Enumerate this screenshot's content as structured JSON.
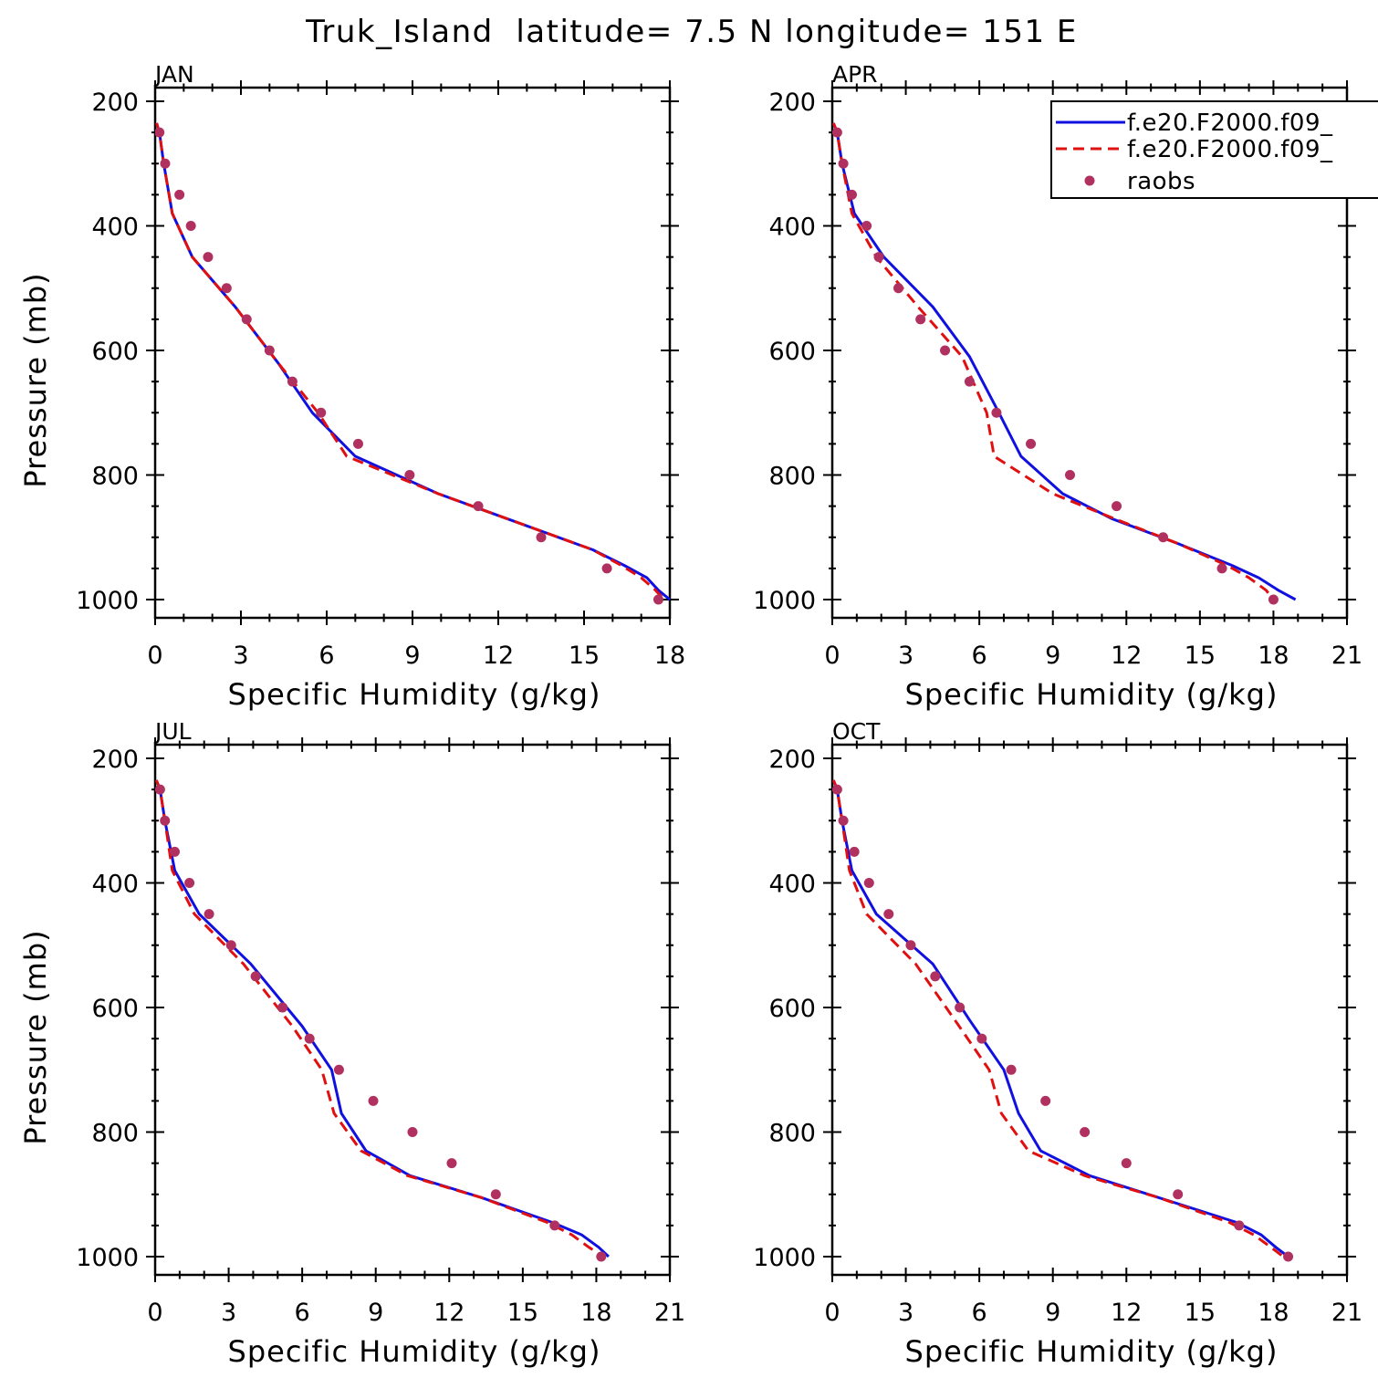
{
  "title": "Truk_Island  latitude= 7.5 N longitude= 151 E",
  "chart_data": {
    "type": "line",
    "xlabel": "Specific Humidity (g/kg)",
    "ylabel": "Pressure (mb)",
    "ylim": [
      1000,
      200
    ],
    "yticks": [
      200,
      400,
      600,
      800,
      1000
    ],
    "legend": {
      "placement": "top-right (APR panel)",
      "entries": [
        {
          "label": "f.e20.F2000.f09_",
          "style": "solid",
          "color": "#1010e0"
        },
        {
          "label": "f.e20.F2000.f09_",
          "style": "dashed",
          "color": "#e01010"
        },
        {
          "label": "raobs",
          "style": "marker",
          "color": "#b03060"
        }
      ]
    },
    "panels": [
      {
        "label": "JAN",
        "xlim": [
          0,
          18
        ],
        "xticks": [
          0,
          3,
          6,
          9,
          12,
          15,
          18
        ],
        "series": [
          {
            "style": "solid",
            "color": "#1010e0",
            "x": [
              0.05,
              0.15,
              0.3,
              0.6,
              1.3,
              2.8,
              4.3,
              5.5,
              7.0,
              9.9,
              12.3,
              15.3,
              16.4,
              17.2,
              17.6,
              18.0
            ],
            "y": [
              235,
              250,
              300,
              380,
              450,
              530,
              620,
              700,
              770,
              830,
              870,
              920,
              945,
              965,
              985,
              1000
            ]
          },
          {
            "style": "dashed",
            "color": "#e01010",
            "x": [
              0.05,
              0.15,
              0.3,
              0.6,
              1.3,
              2.8,
              4.3,
              5.7,
              6.7,
              9.9,
              12.3,
              15.3,
              16.3,
              17.0,
              17.5,
              17.8
            ],
            "y": [
              235,
              250,
              300,
              380,
              450,
              530,
              620,
              700,
              770,
              830,
              870,
              920,
              945,
              965,
              985,
              1000
            ]
          },
          {
            "style": "marker",
            "color": "#b03060",
            "x": [
              0.15,
              0.35,
              0.85,
              1.25,
              1.85,
              2.5,
              3.2,
              4.0,
              4.8,
              5.8,
              7.1,
              8.9,
              11.3,
              13.5,
              15.8,
              17.6
            ],
            "y": [
              250,
              300,
              350,
              400,
              450,
              500,
              550,
              600,
              650,
              700,
              750,
              800,
              850,
              900,
              950,
              1000
            ]
          }
        ]
      },
      {
        "label": "APR",
        "xlim": [
          0,
          21
        ],
        "xticks": [
          0,
          3,
          6,
          9,
          12,
          15,
          18,
          21
        ],
        "series": [
          {
            "style": "solid",
            "color": "#1010e0",
            "x": [
              0.05,
              0.2,
              0.4,
              0.9,
              2.1,
              4.1,
              5.6,
              6.8,
              7.7,
              9.4,
              11.4,
              14.1,
              16.3,
              17.4,
              18.2,
              18.9
            ],
            "y": [
              235,
              250,
              300,
              380,
              450,
              530,
              610,
              700,
              770,
              830,
              870,
              910,
              945,
              965,
              985,
              1000
            ]
          },
          {
            "style": "dashed",
            "color": "#e01010",
            "x": [
              0.05,
              0.2,
              0.4,
              0.8,
              1.8,
              3.5,
              5.3,
              6.3,
              6.6,
              9.0,
              11.5,
              14.1,
              16.1,
              17.0,
              17.7,
              18.0
            ],
            "y": [
              235,
              250,
              300,
              380,
              450,
              530,
              610,
              700,
              770,
              830,
              870,
              910,
              945,
              965,
              985,
              1000
            ]
          },
          {
            "style": "marker",
            "color": "#b03060",
            "x": [
              0.2,
              0.45,
              0.8,
              1.4,
              1.9,
              2.7,
              3.6,
              4.6,
              5.6,
              6.7,
              8.1,
              9.7,
              11.6,
              13.5,
              15.9,
              18.0
            ],
            "y": [
              250,
              300,
              350,
              400,
              450,
              500,
              550,
              600,
              650,
              700,
              750,
              800,
              850,
              900,
              950,
              1000
            ]
          }
        ]
      },
      {
        "label": "JUL",
        "xlim": [
          0,
          21
        ],
        "xticks": [
          0,
          3,
          6,
          9,
          12,
          15,
          18,
          21
        ],
        "series": [
          {
            "style": "solid",
            "color": "#1010e0",
            "x": [
              0.05,
              0.2,
              0.4,
              0.8,
              1.8,
              3.9,
              6.0,
              7.2,
              7.6,
              8.6,
              10.4,
              13.3,
              16.2,
              17.4,
              18.1,
              18.5
            ],
            "y": [
              235,
              250,
              300,
              380,
              450,
              530,
              630,
              700,
              770,
              830,
              870,
              905,
              945,
              965,
              985,
              1000
            ]
          },
          {
            "style": "dashed",
            "color": "#e01010",
            "x": [
              0.05,
              0.2,
              0.4,
              0.7,
              1.6,
              3.6,
              5.6,
              6.8,
              7.3,
              8.4,
              10.3,
              13.3,
              16.0,
              17.0,
              17.7,
              18.3
            ],
            "y": [
              235,
              250,
              300,
              380,
              450,
              530,
              630,
              700,
              770,
              830,
              870,
              905,
              945,
              965,
              985,
              1000
            ]
          },
          {
            "style": "marker",
            "color": "#b03060",
            "x": [
              0.2,
              0.4,
              0.8,
              1.4,
              2.2,
              3.1,
              4.1,
              5.2,
              6.3,
              7.5,
              8.9,
              10.5,
              12.1,
              13.9,
              16.3,
              18.2
            ],
            "y": [
              250,
              300,
              350,
              400,
              450,
              500,
              550,
              600,
              650,
              700,
              750,
              800,
              850,
              900,
              950,
              1000
            ]
          }
        ]
      },
      {
        "label": "OCT",
        "xlim": [
          0,
          21
        ],
        "xticks": [
          0,
          3,
          6,
          9,
          12,
          15,
          18,
          21
        ],
        "series": [
          {
            "style": "solid",
            "color": "#1010e0",
            "x": [
              0.05,
              0.2,
              0.4,
              0.8,
              1.8,
              4.1,
              5.6,
              7.0,
              7.6,
              8.5,
              10.5,
              13.3,
              16.5,
              17.5,
              18.1,
              18.6
            ],
            "y": [
              235,
              250,
              300,
              380,
              450,
              530,
              620,
              700,
              770,
              830,
              870,
              905,
              945,
              965,
              985,
              1000
            ]
          },
          {
            "style": "dashed",
            "color": "#e01010",
            "x": [
              0.05,
              0.2,
              0.4,
              0.7,
              1.4,
              3.4,
              5.0,
              6.4,
              6.9,
              8.0,
              10.3,
              13.3,
              16.2,
              17.2,
              17.9,
              18.4
            ],
            "y": [
              235,
              250,
              300,
              380,
              450,
              530,
              620,
              700,
              770,
              830,
              870,
              905,
              945,
              965,
              985,
              1000
            ]
          },
          {
            "style": "marker",
            "color": "#b03060",
            "x": [
              0.2,
              0.45,
              0.9,
              1.5,
              2.3,
              3.2,
              4.2,
              5.2,
              6.1,
              7.3,
              8.7,
              10.3,
              12.0,
              14.1,
              16.6,
              18.6
            ],
            "y": [
              250,
              300,
              350,
              400,
              450,
              500,
              550,
              600,
              650,
              700,
              750,
              800,
              850,
              900,
              950,
              1000
            ]
          }
        ]
      }
    ]
  }
}
